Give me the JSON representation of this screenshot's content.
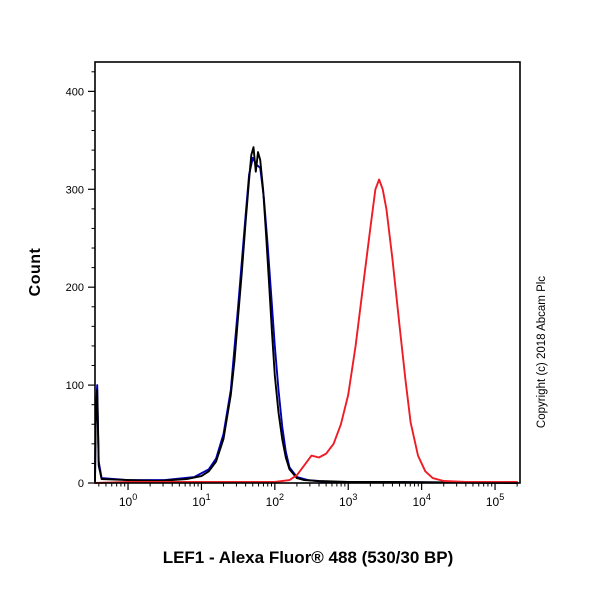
{
  "chart_data": {
    "type": "line",
    "subtype": "flow-cytometry-histogram",
    "bottom_title": "LEF1 - Alexa Fluor® 488 (530/30 BP)",
    "ylabel": "Count",
    "copyright": "Copyright (c) 2018 Abcam Plc",
    "x_scale": "log10",
    "x_tick_exponents": [
      0,
      1,
      2,
      3,
      4,
      5
    ],
    "y_ticks": [
      0,
      100,
      200,
      300,
      400
    ],
    "y_minor_step": 20,
    "xlim_log": [
      -0.45,
      5.34
    ],
    "ylim": [
      0,
      430
    ],
    "grid": false,
    "legend": "none",
    "series": [
      {
        "name": "blue-control",
        "color": "#0000b4",
        "points": [
          [
            -0.45,
            2
          ],
          [
            -0.44,
            70
          ],
          [
            -0.42,
            100
          ],
          [
            -0.4,
            22
          ],
          [
            -0.36,
            5
          ],
          [
            0,
            3
          ],
          [
            0.5,
            3
          ],
          [
            0.9,
            6
          ],
          [
            1.1,
            14
          ],
          [
            1.2,
            25
          ],
          [
            1.3,
            50
          ],
          [
            1.4,
            95
          ],
          [
            1.5,
            180
          ],
          [
            1.6,
            272
          ],
          [
            1.65,
            315
          ],
          [
            1.7,
            332
          ],
          [
            1.75,
            325
          ],
          [
            1.8,
            322
          ],
          [
            1.85,
            292
          ],
          [
            1.9,
            245
          ],
          [
            1.95,
            192
          ],
          [
            2.0,
            140
          ],
          [
            2.05,
            95
          ],
          [
            2.1,
            58
          ],
          [
            2.15,
            32
          ],
          [
            2.2,
            16
          ],
          [
            2.3,
            6
          ],
          [
            2.45,
            3
          ],
          [
            2.7,
            1
          ],
          [
            3.5,
            1
          ],
          [
            5.3,
            0
          ]
        ]
      },
      {
        "name": "black-control",
        "color": "#000000",
        "points": [
          [
            -0.45,
            2
          ],
          [
            -0.44,
            60
          ],
          [
            -0.42,
            95
          ],
          [
            -0.4,
            18
          ],
          [
            -0.36,
            4
          ],
          [
            0,
            3
          ],
          [
            0.4,
            2
          ],
          [
            0.8,
            4
          ],
          [
            1.0,
            7
          ],
          [
            1.1,
            12
          ],
          [
            1.2,
            22
          ],
          [
            1.3,
            45
          ],
          [
            1.4,
            90
          ],
          [
            1.45,
            125
          ],
          [
            1.5,
            170
          ],
          [
            1.55,
            215
          ],
          [
            1.6,
            265
          ],
          [
            1.65,
            310
          ],
          [
            1.68,
            335
          ],
          [
            1.71,
            343
          ],
          [
            1.74,
            318
          ],
          [
            1.77,
            338
          ],
          [
            1.8,
            330
          ],
          [
            1.84,
            300
          ],
          [
            1.88,
            255
          ],
          [
            1.92,
            205
          ],
          [
            1.96,
            155
          ],
          [
            2.0,
            110
          ],
          [
            2.05,
            72
          ],
          [
            2.1,
            45
          ],
          [
            2.15,
            26
          ],
          [
            2.2,
            14
          ],
          [
            2.3,
            5
          ],
          [
            2.4,
            3
          ],
          [
            2.6,
            2
          ],
          [
            3.0,
            1
          ],
          [
            3.6,
            1
          ],
          [
            5.3,
            0
          ]
        ]
      },
      {
        "name": "red-lef1",
        "color": "#ee1c25",
        "points": [
          [
            -0.45,
            0
          ],
          [
            0,
            1
          ],
          [
            1.0,
            1
          ],
          [
            1.5,
            1
          ],
          [
            2.0,
            1
          ],
          [
            2.2,
            3
          ],
          [
            2.3,
            8
          ],
          [
            2.4,
            18
          ],
          [
            2.5,
            28
          ],
          [
            2.6,
            26
          ],
          [
            2.7,
            30
          ],
          [
            2.8,
            40
          ],
          [
            2.9,
            60
          ],
          [
            3.0,
            90
          ],
          [
            3.1,
            140
          ],
          [
            3.2,
            200
          ],
          [
            3.3,
            260
          ],
          [
            3.37,
            300
          ],
          [
            3.42,
            310
          ],
          [
            3.47,
            300
          ],
          [
            3.52,
            280
          ],
          [
            3.6,
            230
          ],
          [
            3.7,
            160
          ],
          [
            3.78,
            105
          ],
          [
            3.85,
            62
          ],
          [
            3.95,
            28
          ],
          [
            4.05,
            12
          ],
          [
            4.15,
            5
          ],
          [
            4.3,
            2
          ],
          [
            4.6,
            1
          ],
          [
            5.3,
            1
          ]
        ]
      }
    ]
  }
}
